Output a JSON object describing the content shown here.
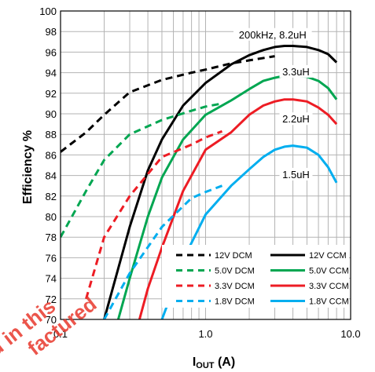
{
  "chart_data": {
    "type": "line",
    "title": "",
    "xlabel": "I",
    "xlabel_sub": "OUT",
    "xlabel_unit": " (A)",
    "ylabel": "Efficiency %",
    "xscale": "log",
    "xlim": [
      0.1,
      10.0
    ],
    "ylim": [
      70,
      100
    ],
    "x_ticks": [
      "0.1",
      "1.0",
      "10.0"
    ],
    "y_ticks": [
      70,
      72,
      74,
      76,
      78,
      80,
      82,
      84,
      86,
      88,
      90,
      92,
      94,
      96,
      98,
      100
    ],
    "grid": true,
    "legend_position": "bottom-right",
    "annotations": [
      {
        "text": "200kHz, 8.2uH",
        "color": "#000000",
        "x": 2.9,
        "y": 97.5
      },
      {
        "text": "3.3uH",
        "color": "#000000",
        "x": 4.2,
        "y": 93.9
      },
      {
        "text": "2.2uH",
        "color": "#000000",
        "x": 4.2,
        "y": 89.3
      },
      {
        "text": "1.5uH",
        "color": "#000000",
        "x": 4.2,
        "y": 83.9
      }
    ],
    "series": [
      {
        "name": "12V DCM",
        "color": "#000000",
        "dash": true,
        "x": [
          0.1,
          0.15,
          0.2,
          0.3,
          0.5,
          0.8,
          1.0,
          1.5,
          2.0,
          3.0
        ],
        "y": [
          86.3,
          88.2,
          89.9,
          92.1,
          93.3,
          94.0,
          94.3,
          94.9,
          95.2,
          95.6
        ]
      },
      {
        "name": "12V CCM",
        "color": "#000000",
        "dash": false,
        "x": [
          0.2,
          0.3,
          0.4,
          0.5,
          0.7,
          1.0,
          1.5,
          2.0,
          2.5,
          3.0,
          3.5,
          4.0,
          5.0,
          6.0,
          7.0,
          8.0
        ],
        "y": [
          70.0,
          79.0,
          84.5,
          87.5,
          90.8,
          93.0,
          94.8,
          95.7,
          96.2,
          96.5,
          96.6,
          96.6,
          96.5,
          96.2,
          95.8,
          95.0
        ]
      },
      {
        "name": "5.0V DCM",
        "color": "#00a651",
        "dash": true,
        "x": [
          0.1,
          0.15,
          0.2,
          0.3,
          0.5,
          0.8,
          1.0,
          1.3
        ],
        "y": [
          78.0,
          82.5,
          85.5,
          88.0,
          89.4,
          90.3,
          90.7,
          91.0
        ]
      },
      {
        "name": "5.0V CCM",
        "color": "#00a651",
        "dash": false,
        "x": [
          0.25,
          0.3,
          0.4,
          0.5,
          0.7,
          1.0,
          1.5,
          2.0,
          2.5,
          3.0,
          3.5,
          4.0,
          5.0,
          6.0,
          7.0,
          8.0
        ],
        "y": [
          70.0,
          74.0,
          80.0,
          83.8,
          87.5,
          89.9,
          91.3,
          92.4,
          93.2,
          93.5,
          93.7,
          93.7,
          93.6,
          93.2,
          92.5,
          91.4
        ]
      },
      {
        "name": "3.3V DCM",
        "color": "#ed1c24",
        "dash": true,
        "x": [
          0.15,
          0.2,
          0.3,
          0.5,
          0.8,
          1.0,
          1.3
        ],
        "y": [
          72.0,
          78.0,
          82.0,
          85.8,
          87.0,
          87.7,
          88.3
        ]
      },
      {
        "name": "3.3V CCM",
        "color": "#ed1c24",
        "dash": false,
        "x": [
          0.35,
          0.4,
          0.5,
          0.7,
          1.0,
          1.5,
          2.0,
          2.5,
          3.0,
          3.5,
          4.0,
          5.0,
          6.0,
          7.0,
          8.0
        ],
        "y": [
          70.0,
          73.0,
          77.0,
          82.5,
          86.5,
          88.2,
          89.9,
          90.8,
          91.2,
          91.4,
          91.4,
          91.2,
          90.6,
          89.9,
          89.0
        ]
      },
      {
        "name": "1.8V DCM",
        "color": "#00aeef",
        "dash": true,
        "x": [
          0.2,
          0.3,
          0.5,
          0.8,
          1.0,
          1.3
        ],
        "y": [
          70.0,
          74.5,
          79.0,
          81.8,
          82.4,
          83.0
        ]
      },
      {
        "name": "1.8V CCM",
        "color": "#00aeef",
        "dash": false,
        "x": [
          0.5,
          0.6,
          0.7,
          1.0,
          1.5,
          2.0,
          2.5,
          3.0,
          3.5,
          4.0,
          5.0,
          6.0,
          7.0,
          8.0
        ],
        "y": [
          70.0,
          73.0,
          75.8,
          80.2,
          83.0,
          84.6,
          85.8,
          86.5,
          86.8,
          86.9,
          86.7,
          86.0,
          84.8,
          83.3
        ]
      }
    ]
  },
  "watermark": {
    "line1": "d in this",
    "line2": "factured",
    "color": "#e8382c"
  }
}
